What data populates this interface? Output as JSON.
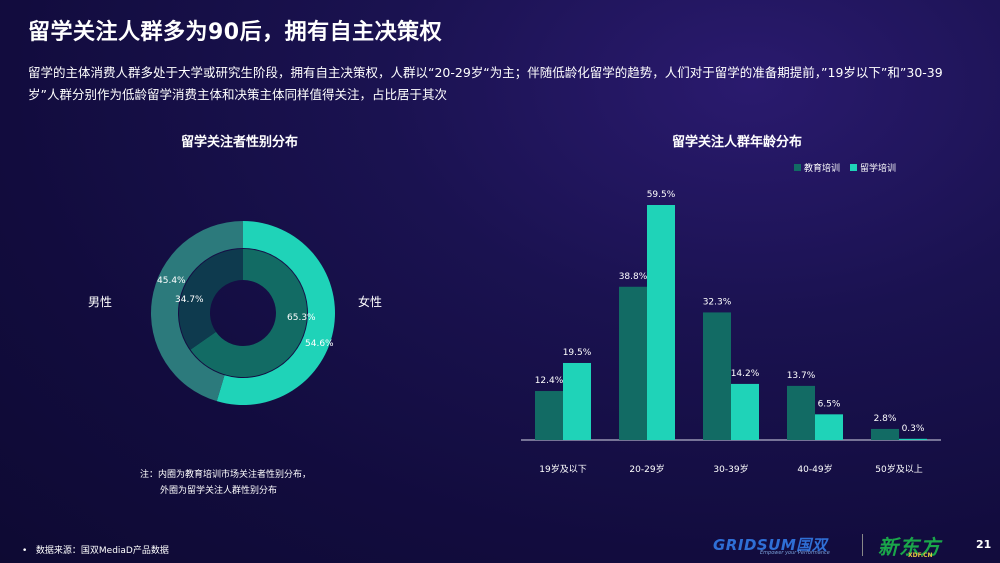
{
  "title": "留学关注人群多为90后，拥有自主决策权",
  "description": "留学的主体消费人群多处于大学或研究生阶段，拥有自主决策权，人群以“20-29岁“为主；伴随低龄化留学的趋势，人们对于留学的准备期提前，”19岁以下”和”30-39岁”人群分别作为低龄留学消费主体和决策主体同样值得关注，占比居于其次",
  "donut": {
    "title": "留学关注者性别分布",
    "male_label": "男性",
    "female_label": "女性",
    "outer": {
      "male_pct": "45.4%",
      "female_pct": "54.6%",
      "male_value": 45.4,
      "female_value": 54.6
    },
    "inner": {
      "male_pct": "34.7%",
      "female_pct": "65.3%",
      "male_value": 34.7,
      "female_value": 65.3
    },
    "colors": {
      "outer_male": "#2c7a7c",
      "outer_female": "#1fd3b8",
      "inner_male": "#0e3a4e",
      "inner_female": "#126b64"
    },
    "note_line1": "注：内圈为教育培训市场关注者性别分布，",
    "note_line2": "外圈为留学关注人群性别分布"
  },
  "chart_data": {
    "type": "bar",
    "title": "留学关注人群年龄分布",
    "categories": [
      "19岁及以下",
      "20-29岁",
      "30-39岁",
      "40-49岁",
      "50岁及以上"
    ],
    "series": [
      {
        "name": "教育培训",
        "values": [
          12.4,
          38.8,
          32.3,
          13.7,
          2.8
        ],
        "labels": [
          "12.4%",
          "38.8%",
          "32.3%",
          "13.7%",
          "2.8%"
        ],
        "color": "#126b64"
      },
      {
        "name": "留学培训",
        "values": [
          19.5,
          59.5,
          14.2,
          6.5,
          0.3
        ],
        "labels": [
          "19.5%",
          "59.5%",
          "14.2%",
          "6.5%",
          "0.3%"
        ],
        "color": "#1fd3b8"
      }
    ],
    "ylim": [
      0,
      60
    ],
    "grid": false,
    "legend": "top-right"
  },
  "footer": {
    "bullet": "•",
    "source": "数据来源：国双MediaD产品数据",
    "page": "21"
  },
  "logos": {
    "gridsum": "GRIDSUM国双",
    "gridsum_tagline": "Empower your Performance",
    "xdf": "新东方",
    "xdf_sub": "XDF.CN"
  }
}
